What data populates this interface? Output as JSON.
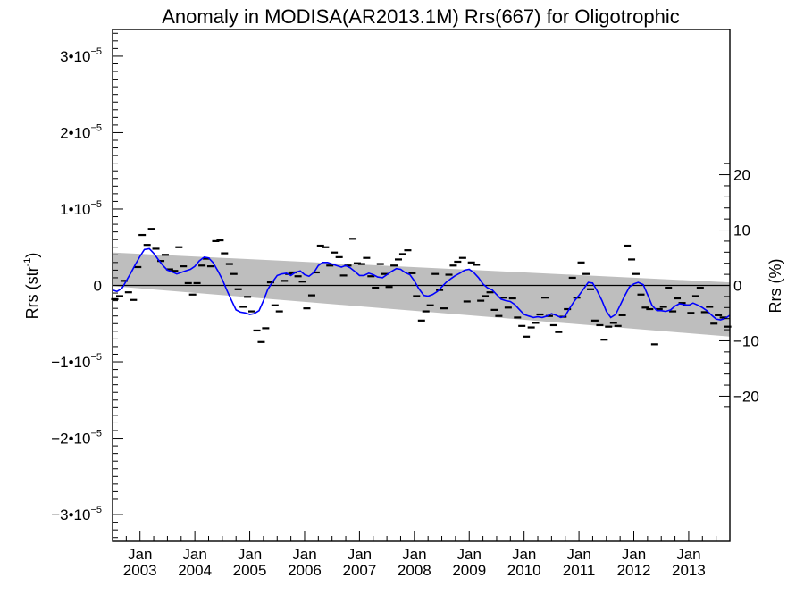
{
  "chart_data": {
    "type": "line",
    "title": "Anomaly in MODISA(AR2013.1M) Rrs(667) for Oligotrophic",
    "ylabel": "Rrs (str",
    "ylabel_sup": "-1",
    "ylabel_close": ")",
    "y2label": "Rrs (%)",
    "ylim": [
      -3.35e-05,
      3.35e-05
    ],
    "xlim": [
      2002.5,
      2013.75
    ],
    "y_ticks": [
      {
        "value": 3e-05,
        "mant": "3•10",
        "exp": "−5"
      },
      {
        "value": 2e-05,
        "mant": "2•10",
        "exp": "−5"
      },
      {
        "value": 1e-05,
        "mant": "1•10",
        "exp": "−5"
      },
      {
        "value": 0,
        "mant": "0",
        "exp": ""
      },
      {
        "value": -1e-05,
        "mant": "−1•10",
        "exp": "−5"
      },
      {
        "value": -2e-05,
        "mant": "−2•10",
        "exp": "−5"
      },
      {
        "value": -3e-05,
        "mant": "−3•10",
        "exp": "−5"
      }
    ],
    "y2_ticks": [
      {
        "value": 20,
        "label": "20"
      },
      {
        "value": 10,
        "label": "10"
      },
      {
        "value": 0,
        "label": "0"
      },
      {
        "value": -10,
        "label": "−10"
      },
      {
        "value": -20,
        "label": "−20"
      }
    ],
    "y2_per_y": 1380000,
    "x_ticks": [
      {
        "value": 2003,
        "month": "Jan",
        "year": "2003"
      },
      {
        "value": 2004,
        "month": "Jan",
        "year": "2004"
      },
      {
        "value": 2005,
        "month": "Jan",
        "year": "2005"
      },
      {
        "value": 2006,
        "month": "Jan",
        "year": "2006"
      },
      {
        "value": 2007,
        "month": "Jan",
        "year": "2007"
      },
      {
        "value": 2008,
        "month": "Jan",
        "year": "2008"
      },
      {
        "value": 2009,
        "month": "Jan",
        "year": "2009"
      },
      {
        "value": 2010,
        "month": "Jan",
        "year": "2010"
      },
      {
        "value": 2011,
        "month": "Jan",
        "year": "2011"
      },
      {
        "value": 2012,
        "month": "Jan",
        "year": "2012"
      },
      {
        "value": 2013,
        "month": "Jan",
        "year": "2013"
      }
    ],
    "grid": false,
    "zero_line": true,
    "band": {
      "x": [
        2002.5,
        2013.75
      ],
      "upper": [
        4.3e-06,
        4e-07
      ],
      "lower": [
        -1e-07,
        -6.7e-06
      ],
      "color": "#bebebe"
    },
    "series": [
      {
        "style": "marker",
        "color": "#000000",
        "x": [
          2002.54,
          2002.63,
          2002.71,
          2002.79,
          2002.88,
          2002.96,
          2003.04,
          2003.13,
          2003.21,
          2003.29,
          2003.38,
          2003.46,
          2003.54,
          2003.63,
          2003.71,
          2003.79,
          2003.88,
          2003.96,
          2004.04,
          2004.13,
          2004.21,
          2004.29,
          2004.38,
          2004.46,
          2004.54,
          2004.63,
          2004.71,
          2004.79,
          2004.88,
          2004.96,
          2005.04,
          2005.13,
          2005.21,
          2005.29,
          2005.38,
          2005.46,
          2005.54,
          2005.63,
          2005.71,
          2005.79,
          2005.88,
          2005.96,
          2006.04,
          2006.13,
          2006.21,
          2006.29,
          2006.38,
          2006.46,
          2006.54,
          2006.63,
          2006.71,
          2006.79,
          2006.88,
          2006.96,
          2007.04,
          2007.13,
          2007.21,
          2007.29,
          2007.38,
          2007.46,
          2007.54,
          2007.63,
          2007.71,
          2007.79,
          2007.88,
          2007.96,
          2008.04,
          2008.13,
          2008.21,
          2008.29,
          2008.38,
          2008.46,
          2008.54,
          2008.63,
          2008.71,
          2008.79,
          2008.88,
          2008.96,
          2009.04,
          2009.13,
          2009.21,
          2009.29,
          2009.38,
          2009.46,
          2009.54,
          2009.63,
          2009.71,
          2009.79,
          2009.88,
          2009.96,
          2010.04,
          2010.13,
          2010.21,
          2010.29,
          2010.38,
          2010.46,
          2010.54,
          2010.63,
          2010.71,
          2010.79,
          2010.88,
          2010.96,
          2011.04,
          2011.13,
          2011.21,
          2011.29,
          2011.38,
          2011.46,
          2011.54,
          2011.63,
          2011.71,
          2011.79,
          2011.88,
          2011.96,
          2012.04,
          2012.13,
          2012.21,
          2012.29,
          2012.38,
          2012.46,
          2012.54,
          2012.63,
          2012.71,
          2012.79,
          2012.88,
          2012.96,
          2013.04,
          2013.13,
          2013.21,
          2013.29,
          2013.38,
          2013.46,
          2013.54,
          2013.63,
          2013.71
        ],
        "y": [
          -1.8e-06,
          -1.4e-06,
          6e-07,
          -9e-07,
          -1.9e-06,
          2.4e-06,
          6.6e-06,
          5.3e-06,
          7.4e-06,
          4.8e-06,
          3.2e-06,
          4e-06,
          2.1e-06,
          1.9e-06,
          5e-06,
          2.5e-06,
          3e-07,
          -1.2e-06,
          3e-07,
          2.6e-06,
          3.5e-06,
          2.5e-06,
          5.8e-06,
          5.9e-06,
          4.2e-06,
          2.8e-06,
          1.5e-06,
          -5e-07,
          -2.8e-06,
          -1.5e-06,
          -3.4e-06,
          -5.9e-06,
          -7.4e-06,
          -5.6e-06,
          4e-07,
          -2.6e-06,
          -3.4e-06,
          6e-07,
          1.5e-06,
          1.7e-06,
          1.2e-06,
          5e-07,
          -3e-06,
          -1.3e-06,
          1.7e-06,
          5.2e-06,
          5e-06,
          2.6e-06,
          4.3e-06,
          3.7e-06,
          1.3e-06,
          2.6e-06,
          6.1e-06,
          2.9e-06,
          2.8e-06,
          3.6e-06,
          1.2e-06,
          -3e-07,
          2.8e-06,
          1.5e-06,
          -2e-07,
          2.6e-06,
          3.4e-06,
          4.1e-06,
          4.6e-06,
          1.6e-06,
          -1.4e-06,
          -4.6e-06,
          -3.4e-06,
          -2.6e-06,
          1.5e-06,
          -6e-07,
          -3e-06,
          1.4e-06,
          2.6e-06,
          3.1e-06,
          3.6e-06,
          -2.1e-06,
          3e-06,
          2.7e-06,
          -2e-06,
          -1.4e-06,
          -9e-07,
          -3.2e-06,
          -4e-06,
          -1.6e-06,
          -2.9e-06,
          -1.7e-06,
          -4.2e-06,
          -5.3e-06,
          -6.7e-06,
          -5.5e-06,
          -4.9e-06,
          -3.8e-06,
          -1.6e-06,
          -4e-06,
          -5.2e-06,
          -6.1e-06,
          -4.1e-06,
          -3.1e-06,
          1e-06,
          -1.6e-06,
          3e-06,
          1.5e-06,
          -5e-07,
          -4.6e-06,
          -5.2e-06,
          -7.1e-06,
          -5.4e-06,
          -4.9e-06,
          -5.3e-06,
          -3.9e-06,
          5.2e-06,
          3.4e-06,
          1.5e-06,
          -1.2e-06,
          -2.9e-06,
          -3.1e-06,
          -7.7e-06,
          -3.1e-06,
          -2.8e-06,
          -3e-07,
          -3.4e-06,
          -1.7e-06,
          -2.3e-06,
          -2.6e-06,
          -3.6e-06,
          -1.4e-06,
          -3e-07,
          -3.5e-06,
          -2.8e-06,
          -5e-06,
          -3.9e-06,
          -4.2e-06,
          -5.4e-06
        ]
      },
      {
        "style": "line",
        "color": "#0000ff",
        "x": [
          2002.5,
          2002.58,
          2002.67,
          2002.75,
          2002.83,
          2002.92,
          2003.0,
          2003.08,
          2003.17,
          2003.25,
          2003.33,
          2003.42,
          2003.5,
          2003.58,
          2003.67,
          2003.75,
          2003.83,
          2003.92,
          2004.0,
          2004.08,
          2004.17,
          2004.25,
          2004.33,
          2004.42,
          2004.5,
          2004.58,
          2004.67,
          2004.75,
          2004.83,
          2004.92,
          2005.0,
          2005.08,
          2005.17,
          2005.25,
          2005.33,
          2005.42,
          2005.5,
          2005.58,
          2005.67,
          2005.75,
          2005.83,
          2005.92,
          2006.0,
          2006.08,
          2006.17,
          2006.25,
          2006.33,
          2006.42,
          2006.5,
          2006.58,
          2006.67,
          2006.75,
          2006.83,
          2006.92,
          2007.0,
          2007.08,
          2007.17,
          2007.25,
          2007.33,
          2007.42,
          2007.5,
          2007.58,
          2007.67,
          2007.75,
          2007.83,
          2007.92,
          2008.0,
          2008.08,
          2008.17,
          2008.25,
          2008.33,
          2008.42,
          2008.5,
          2008.58,
          2008.67,
          2008.75,
          2008.83,
          2008.92,
          2009.0,
          2009.08,
          2009.17,
          2009.25,
          2009.33,
          2009.42,
          2009.5,
          2009.58,
          2009.67,
          2009.75,
          2009.83,
          2009.92,
          2010.0,
          2010.08,
          2010.17,
          2010.25,
          2010.33,
          2010.42,
          2010.5,
          2010.58,
          2010.67,
          2010.75,
          2010.83,
          2010.92,
          2011.0,
          2011.08,
          2011.17,
          2011.25,
          2011.33,
          2011.42,
          2011.5,
          2011.58,
          2011.67,
          2011.75,
          2011.83,
          2011.92,
          2012.0,
          2012.08,
          2012.17,
          2012.25,
          2012.33,
          2012.42,
          2012.5,
          2012.58,
          2012.67,
          2012.75,
          2012.83,
          2012.92,
          2013.0,
          2013.08,
          2013.17,
          2013.25,
          2013.33,
          2013.42,
          2013.5,
          2013.58,
          2013.67,
          2013.75
        ],
        "y": [
          -6e-07,
          -8e-07,
          -4e-07,
          6e-07,
          1.6e-06,
          2.8e-06,
          3.8e-06,
          4.7e-06,
          4.8e-06,
          4.2e-06,
          3.4e-06,
          2.6e-06,
          2e-06,
          1.8e-06,
          1.5e-06,
          1.7e-06,
          1.9e-06,
          2.1e-06,
          2.5e-06,
          3.2e-06,
          3.7e-06,
          3.6e-06,
          3e-06,
          1.9e-06,
          8e-07,
          -6e-07,
          -2e-06,
          -3.2e-06,
          -3.5e-06,
          -3.6e-06,
          -3.8e-06,
          -3.7e-06,
          -3.3e-06,
          -2e-06,
          -5e-07,
          5e-07,
          1.3e-06,
          1.5e-06,
          1.6e-06,
          1.3e-06,
          1.7e-06,
          1.9e-06,
          1.4e-06,
          1.2e-06,
          1.7e-06,
          2.6e-06,
          3e-06,
          3e-06,
          2.8e-06,
          2.6e-06,
          2.4e-06,
          2.6e-06,
          2.3e-06,
          1.8e-06,
          1.3e-06,
          1.3e-06,
          1.6e-06,
          1.4e-06,
          1.1e-06,
          1e-06,
          1.4e-06,
          1.8e-06,
          2.2e-06,
          2.1e-06,
          1.7e-06,
          1.4e-06,
          6e-07,
          -4e-07,
          -1.3e-06,
          -1.4e-06,
          -1.2e-06,
          -8e-07,
          -2e-07,
          4e-07,
          9e-07,
          1.3e-06,
          1.6e-06,
          2e-06,
          2.1e-06,
          1.7e-06,
          1e-06,
          2e-07,
          -3e-07,
          -6e-07,
          -1.2e-06,
          -1.8e-06,
          -2e-06,
          -2.1e-06,
          -2.5e-06,
          -3.2e-06,
          -3.8e-06,
          -4e-06,
          -4.2e-06,
          -4.1e-06,
          -4.2e-06,
          -4e-06,
          -3.7e-06,
          -3.9e-06,
          -4.2e-06,
          -4e-06,
          -3e-06,
          -2e-06,
          -1.3e-06,
          -5e-07,
          4e-07,
          3e-07,
          -7e-07,
          -2e-06,
          -3.4e-06,
          -4.2e-06,
          -3.8e-06,
          -2.6e-06,
          -1.4e-06,
          -2e-07,
          2e-07,
          4e-07,
          1e-07,
          -1.2e-06,
          -2.6e-06,
          -3.3e-06,
          -3.3e-06,
          -3.4e-06,
          -3.2e-06,
          -2.7e-06,
          -2.4e-06,
          -2.5e-06,
          -2.6e-06,
          -2.3e-06,
          -2.6e-06,
          -2.9e-06,
          -3.3e-06,
          -3.9e-06,
          -4.4e-06,
          -4.5e-06,
          -4.3e-06,
          -3.9e-06
        ]
      }
    ]
  }
}
